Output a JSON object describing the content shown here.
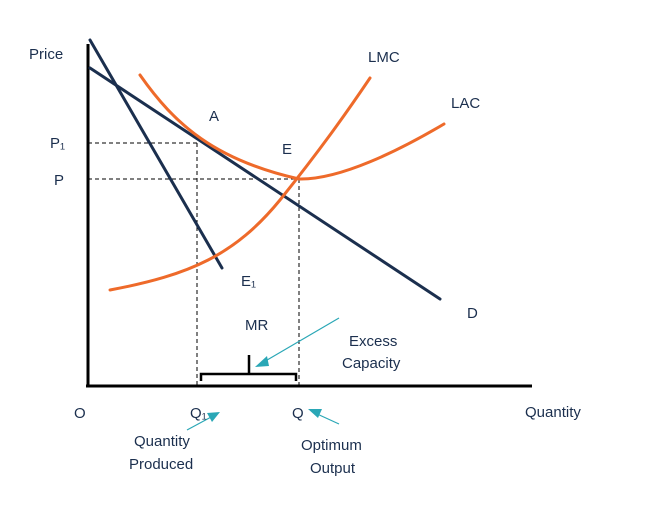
{
  "axes": {
    "y_label": "Price",
    "x_label": "Quantity",
    "origin_label": "O",
    "y_ticks": [
      "P₁",
      "P"
    ],
    "x_ticks": [
      "Q₁",
      "Q"
    ]
  },
  "curves": {
    "lmc": "LMC",
    "lac": "LAC",
    "demand": "D",
    "mr": "MR"
  },
  "points": {
    "a": "A",
    "e": "E",
    "e1": "E₁"
  },
  "annotations": {
    "excess_capacity_line1": "Excess",
    "excess_capacity_line2": "Capacity",
    "quantity_produced_line1": "Quantity",
    "quantity_produced_line2": "Produced",
    "optimum_output_line1": "Optimum",
    "optimum_output_line2": "Output"
  },
  "colors": {
    "cost_curves": "#ee6a2a",
    "revenue_curves": "#1b2f4e",
    "annotation_arrows": "#2aa7b6"
  }
}
